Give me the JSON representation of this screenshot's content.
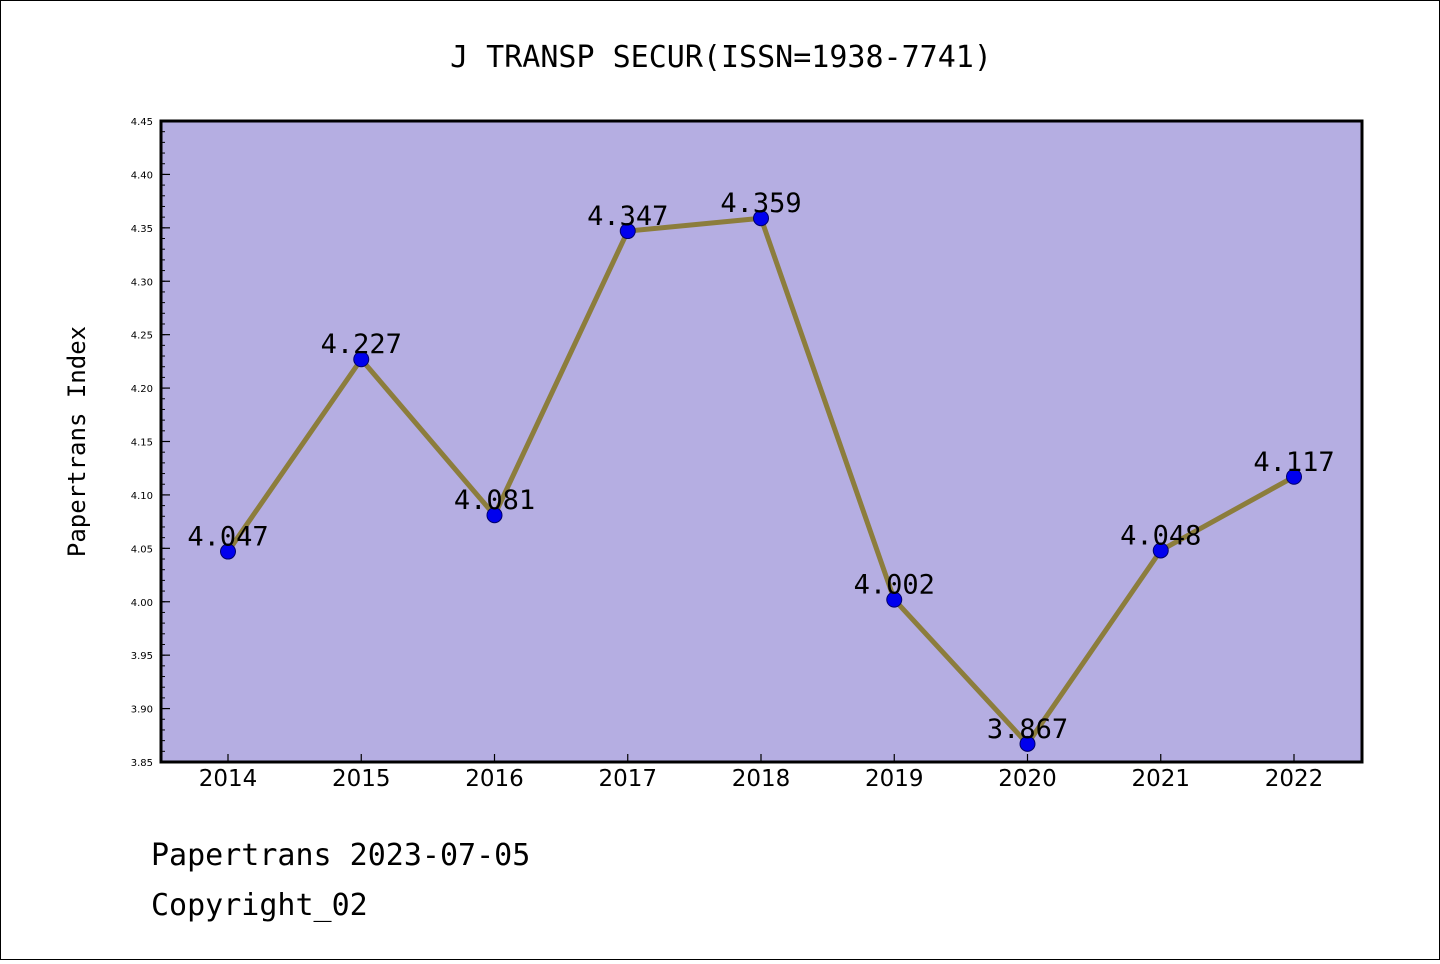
{
  "chart_data": {
    "type": "line",
    "title": "J TRANSP SECUR(ISSN=1938-7741)",
    "xlabel": "",
    "ylabel": "Papertrans Index",
    "categories": [
      "2014",
      "2015",
      "2016",
      "2017",
      "2018",
      "2019",
      "2020",
      "2021",
      "2022"
    ],
    "values": [
      4.047,
      4.227,
      4.081,
      4.347,
      4.359,
      4.002,
      3.867,
      4.048,
      4.117
    ],
    "data_labels": [
      "4.047",
      "4.227",
      "4.081",
      "4.347",
      "4.359",
      "4.002",
      "3.867",
      "4.048",
      "4.117"
    ],
    "ylim": [
      3.85,
      4.45
    ],
    "yticks": [
      "3.85",
      "3.90",
      "3.95",
      "4.00",
      "4.05",
      "4.10",
      "4.15",
      "4.20",
      "4.25",
      "4.30",
      "4.35",
      "4.40",
      "4.45"
    ],
    "grid": false,
    "legend": "none",
    "colors": {
      "plot_background": "#b5aee2",
      "line": "#8c7d3c",
      "marker": "#0000ee"
    }
  },
  "footer": {
    "line1": "Papertrans 2023-07-05",
    "line2": "Copyright_02"
  }
}
